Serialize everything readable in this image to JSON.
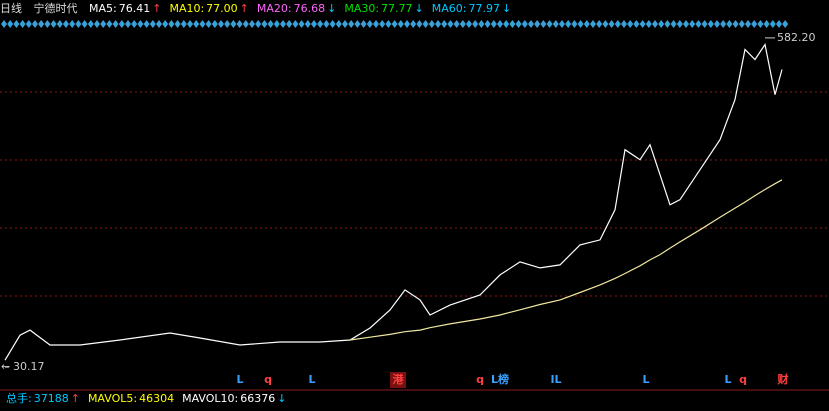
{
  "header": {
    "period": "日线",
    "stock": "宁德时代",
    "indicators": [
      {
        "label": "MA5:",
        "value": "76.41",
        "arrow": "↑",
        "color": "#ffffff"
      },
      {
        "label": "MA10:",
        "value": "77.00",
        "arrow": "↑",
        "color": "#ffff00"
      },
      {
        "label": "MA20:",
        "value": "76.68",
        "arrow": "↓",
        "color": "#ff66ff"
      },
      {
        "label": "MA30:",
        "value": "77.77",
        "arrow": "↓",
        "color": "#00e000"
      },
      {
        "label": "MA60:",
        "value": "77.97",
        "arrow": "↓",
        "color": "#00c8ff"
      }
    ]
  },
  "chart_data": {
    "type": "line",
    "log_scale": true,
    "xlim": [
      0,
      829
    ],
    "ylim": [
      29.4,
      625
    ],
    "x": [
      5,
      20,
      30,
      50,
      80,
      120,
      170,
      200,
      240,
      280,
      320,
      350,
      370,
      390,
      405,
      420,
      430,
      450,
      480,
      500,
      520,
      540,
      560,
      580,
      600,
      615,
      625,
      640,
      650,
      660,
      670,
      680,
      700,
      720,
      735,
      745,
      755,
      765,
      775,
      782
    ],
    "series": [
      {
        "color": "#ffffff",
        "values": [
          32.1,
          40.2,
          42.1,
          36.8,
          36.8,
          38.5,
          41.0,
          39.2,
          36.8,
          37.8,
          37.8,
          38.5,
          42.9,
          50.4,
          60.4,
          55.2,
          48.2,
          52.7,
          57.7,
          69.1,
          77.7,
          73.6,
          75.6,
          90.5,
          94.7,
          124.1,
          213.1,
          194.7,
          222.9,
          170.2,
          129.8,
          135.9,
          178.0,
          233.2,
          334.3,
          524.7,
          479.4,
          548.8,
          349.7,
          438.1
        ]
      },
      {
        "color": "#f0e6a0",
        "values": [
          null,
          null,
          null,
          null,
          null,
          null,
          null,
          null,
          null,
          null,
          null,
          38.5,
          39.5,
          40.5,
          41.5,
          42.1,
          43,
          44.5,
          46.5,
          48.2,
          50.5,
          53,
          55.2,
          59,
          63.2,
          67,
          70,
          75,
          79.1,
          83,
          88,
          93,
          103.7,
          116,
          126,
          133,
          141,
          149,
          157,
          162.6
        ]
      }
    ],
    "annotations": [
      {
        "x": 765,
        "value": 582.2,
        "label": "582.20"
      },
      {
        "x": 5,
        "value": 30.17
      }
    ]
  },
  "markers": [
    {
      "x": 240,
      "text": "L"
    },
    {
      "x": 268,
      "text": "q"
    },
    {
      "x": 312,
      "text": "L"
    },
    {
      "x": 398,
      "text": "港"
    },
    {
      "x": 480,
      "text": "q"
    },
    {
      "x": 500,
      "text": "L榜"
    },
    {
      "x": 556,
      "text": "IL"
    },
    {
      "x": 646,
      "text": "L"
    },
    {
      "x": 728,
      "text": "L"
    },
    {
      "x": 743,
      "text": "q"
    },
    {
      "x": 783,
      "text": "财"
    }
  ],
  "footer": [
    {
      "label": "总手:",
      "value": "37188",
      "arrow": "↑",
      "color": "#00c8ff"
    },
    {
      "label": "MAVOL5:",
      "value": "46304",
      "arrow": "",
      "color": "#ffff00"
    },
    {
      "label": "MAVOL10:",
      "value": "66376",
      "arrow": "↓",
      "color": "#ffffff"
    }
  ]
}
